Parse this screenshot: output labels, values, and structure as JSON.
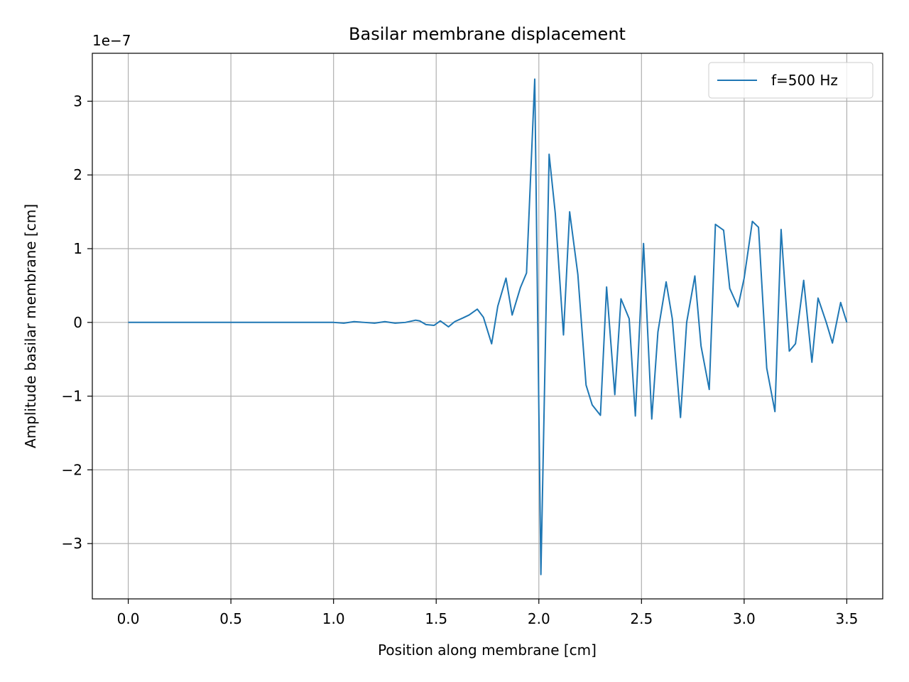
{
  "chart_data": {
    "type": "line",
    "title": "Basilar membrane displacement",
    "xlabel": "Position along membrane [cm]",
    "ylabel": "Amplitude basilar membrane [cm]",
    "y_offset_label": "1e−7",
    "xlim": [
      -0.175,
      3.675
    ],
    "ylim": [
      -3.75,
      3.65
    ],
    "y_scale_note": "values in units of 1e-7 cm",
    "x_ticks": [
      0.0,
      0.5,
      1.0,
      1.5,
      2.0,
      2.5,
      3.0,
      3.5
    ],
    "x_tick_labels": [
      "0.0",
      "0.5",
      "1.0",
      "1.5",
      "2.0",
      "2.5",
      "3.0",
      "3.5"
    ],
    "y_ticks": [
      -3,
      -2,
      -1,
      0,
      1,
      2,
      3
    ],
    "y_tick_labels": [
      "−3",
      "−2",
      "−1",
      "0",
      "1",
      "2",
      "3"
    ],
    "grid": true,
    "legend_position": "top-right",
    "series": [
      {
        "name": "f=500 Hz",
        "color": "#1f77b4",
        "x": [
          0.0,
          0.1,
          0.2,
          0.3,
          0.4,
          0.5,
          0.6,
          0.7,
          0.8,
          0.9,
          1.0,
          1.05,
          1.1,
          1.15,
          1.2,
          1.25,
          1.3,
          1.35,
          1.4,
          1.42,
          1.45,
          1.49,
          1.52,
          1.56,
          1.59,
          1.63,
          1.66,
          1.7,
          1.73,
          1.77,
          1.8,
          1.84,
          1.87,
          1.91,
          1.94,
          1.98,
          2.01,
          2.05,
          2.08,
          2.12,
          2.15,
          2.19,
          2.23,
          2.26,
          2.3,
          2.33,
          2.37,
          2.4,
          2.44,
          2.47,
          2.51,
          2.55,
          2.58,
          2.62,
          2.65,
          2.69,
          2.72,
          2.76,
          2.79,
          2.83,
          2.86,
          2.9,
          2.93,
          2.97,
          3.0,
          3.04,
          3.07,
          3.11,
          3.15,
          3.18,
          3.22,
          3.25,
          3.29,
          3.33,
          3.36,
          3.4,
          3.43,
          3.47,
          3.5
        ],
        "y": [
          0.0,
          0.0,
          0.0,
          0.0,
          0.0,
          0.0,
          0.0,
          0.0,
          0.0,
          0.0,
          0.0,
          -0.01,
          0.01,
          0.0,
          -0.01,
          0.01,
          -0.01,
          0.0,
          0.03,
          0.02,
          -0.03,
          -0.04,
          0.02,
          -0.06,
          0.01,
          0.06,
          0.1,
          0.18,
          0.07,
          -0.29,
          0.22,
          0.6,
          0.1,
          0.47,
          0.67,
          3.3,
          -3.42,
          2.28,
          1.48,
          -0.17,
          1.5,
          0.65,
          -0.85,
          -1.12,
          -1.26,
          0.48,
          -0.98,
          0.32,
          0.05,
          -1.27,
          1.07,
          -1.31,
          -0.13,
          0.55,
          0.05,
          -1.29,
          0.0,
          0.63,
          -0.32,
          -0.91,
          1.33,
          1.25,
          0.46,
          0.21,
          0.6,
          1.37,
          1.29,
          -0.62,
          -1.21,
          1.26,
          -0.39,
          -0.29,
          0.57,
          -0.54,
          0.33,
          0.0,
          -0.28,
          0.27,
          0.0
        ]
      }
    ]
  }
}
